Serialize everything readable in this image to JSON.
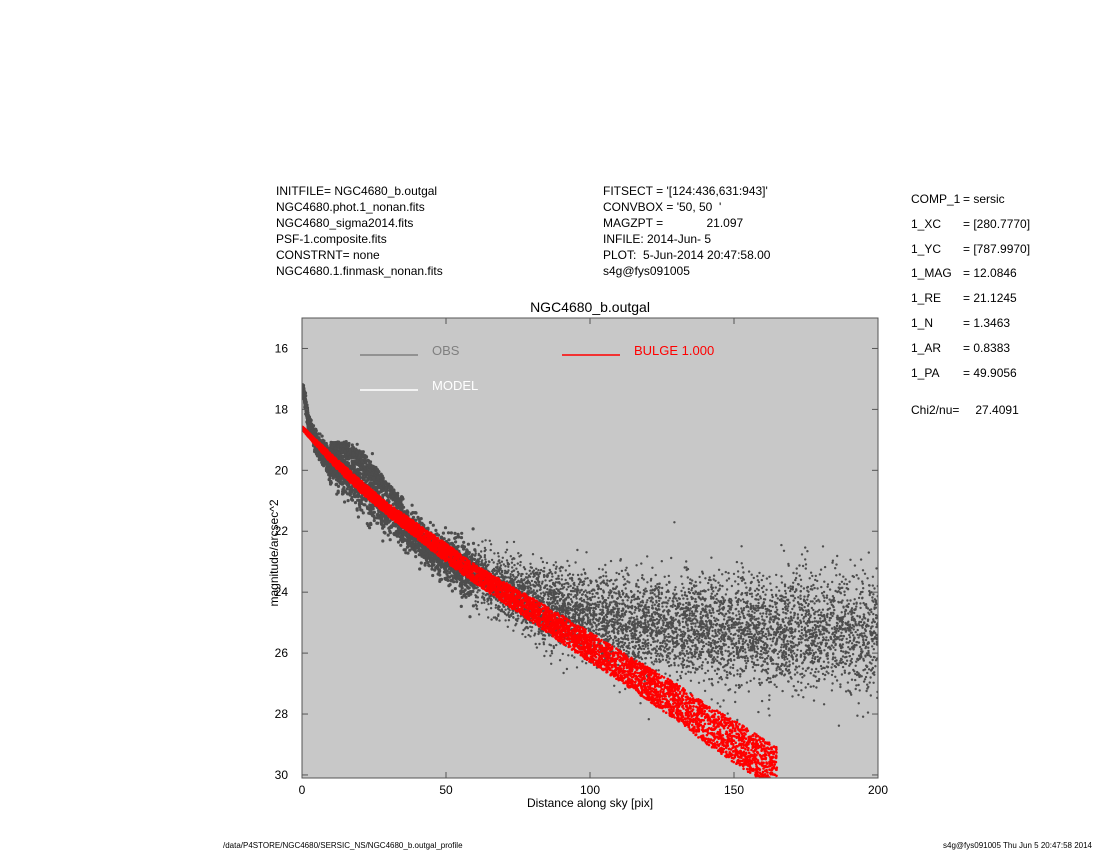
{
  "header_left": [
    "INITFILE= NGC4680_b.outgal",
    "NGC4680.phot.1_nonan.fits",
    "NGC4680_sigma2014.fits",
    "PSF-1.composite.fits",
    "CONSTRNT= none",
    "NGC4680.1.finmask_nonan.fits"
  ],
  "header_mid": [
    "FITSECT = '[124:436,631:943]'",
    "CONVBOX = '50, 50  '",
    "MAGZPT =             21.097",
    "INFILE: 2014-Jun- 5",
    "PLOT:  5-Jun-2014 20:47:58.00",
    "s4g@fys091005"
  ],
  "params": [
    {
      "key": "COMP_1",
      "value": "= sersic"
    },
    {
      "key": "1_XC",
      "value": "= [280.7770]"
    },
    {
      "key": "1_YC",
      "value": "= [787.9970]"
    },
    {
      "key": "1_MAG",
      "value": "= 12.0846"
    },
    {
      "key": "1_RE",
      "value": "= 21.1245"
    },
    {
      "key": "1_N",
      "value": "= 1.3463"
    },
    {
      "key": "1_AR",
      "value": "= 0.8383"
    },
    {
      "key": "1_PA",
      "value": "= 49.9056"
    }
  ],
  "chi": {
    "label": "Chi2/nu=",
    "value": "27.4091"
  },
  "footer": {
    "left": "/data/P4STORE/NGC4680/SERSIC_NS/NGC4680_b.outgal_profile",
    "right": "s4g@fys091005  Thu Jun  5 20:47:58 2014"
  },
  "colors": {
    "plot_bg": "#c8c8c8",
    "obs": "#4d4d4d",
    "obs_legend": "#808080",
    "model": "#ffffff",
    "bulge": "#ff0000"
  },
  "chart_data": {
    "type": "scatter",
    "title": "NGC4680_b.outgal",
    "xlabel": "Distance along sky [pix]",
    "ylabel": "magnitude/arcsec^2",
    "xlim": [
      0,
      200
    ],
    "ylim": [
      30.1,
      15.0
    ],
    "xticks": [
      0,
      50,
      100,
      150,
      200
    ],
    "yticks": [
      16,
      18,
      20,
      22,
      24,
      26,
      28,
      30
    ],
    "grid": false,
    "legend": [
      {
        "label": "OBS",
        "color": "#808080"
      },
      {
        "label": "MODEL",
        "color": "#ffffff"
      },
      {
        "label": "BULGE  1.000",
        "color": "#ff0000"
      }
    ],
    "series": [
      {
        "name": "OBS",
        "x": [
          0.5,
          2,
          4,
          6,
          8,
          10,
          15,
          20,
          25,
          30,
          40,
          50,
          60,
          70,
          80,
          100,
          120,
          140,
          160,
          180,
          200
        ],
        "y_median": [
          17.4,
          18.3,
          18.9,
          19.3,
          19.5,
          19.8,
          20.1,
          20.5,
          20.9,
          21.4,
          22.2,
          22.9,
          23.4,
          23.9,
          24.3,
          24.8,
          25.1,
          25.2,
          25.3,
          25.3,
          25.4
        ],
        "y_spread": [
          0.2,
          0.3,
          0.3,
          0.4,
          0.4,
          0.6,
          0.9,
          1.0,
          0.9,
          0.8,
          0.7,
          0.8,
          1.0,
          1.1,
          1.3,
          1.6,
          1.8,
          2.0,
          2.0,
          2.1,
          2.2
        ]
      },
      {
        "name": "BULGE  1.000",
        "x": [
          0,
          5,
          10,
          20,
          30,
          40,
          50,
          60,
          70,
          80,
          90,
          100,
          110,
          120,
          130,
          140,
          150,
          160,
          165
        ],
        "y": [
          18.6,
          19.1,
          19.6,
          20.5,
          21.3,
          22.0,
          22.7,
          23.4,
          24.0,
          24.6,
          25.2,
          25.8,
          26.4,
          27.0,
          27.6,
          28.3,
          28.9,
          29.5,
          29.8
        ],
        "y_halfwidth": [
          0.05,
          0.1,
          0.15,
          0.2,
          0.2,
          0.25,
          0.3,
          0.3,
          0.35,
          0.4,
          0.45,
          0.5,
          0.5,
          0.55,
          0.6,
          0.65,
          0.7,
          0.7,
          0.7
        ]
      }
    ]
  }
}
